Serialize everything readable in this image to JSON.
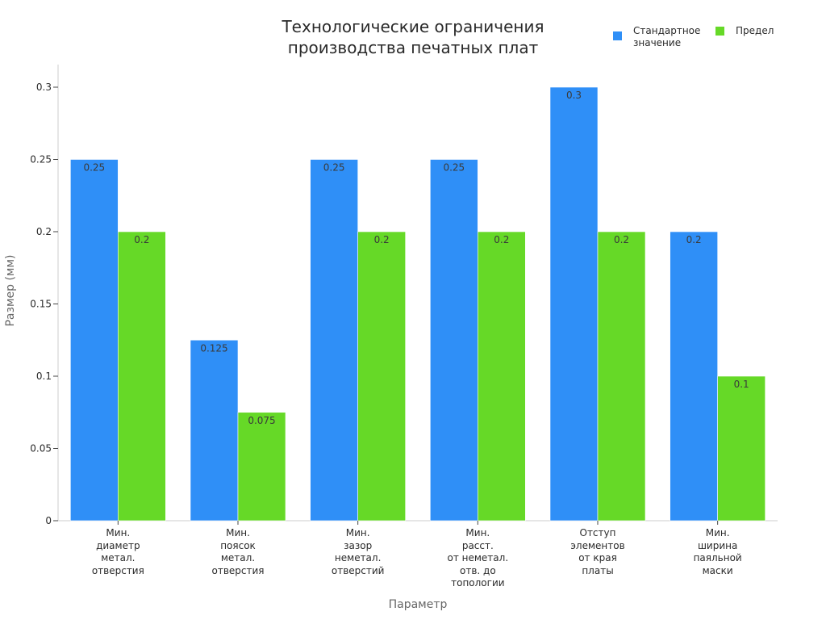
{
  "chart_data": {
    "type": "bar",
    "title": "Технологические ограничения\nпроизводства печатных плат",
    "xlabel": "Параметр",
    "ylabel": "Размер (мм)",
    "ylim": [
      0,
      0.315
    ],
    "yticks": [
      0,
      0.05,
      0.1,
      0.15,
      0.2,
      0.25,
      0.3
    ],
    "ytick_labels": [
      "0",
      "0.05",
      "0.1",
      "0.15",
      "0.2",
      "0.25",
      "0.3"
    ],
    "grid": false,
    "legend_position": "top-right",
    "categories": [
      "Мин.\nдиаметр\nметал.\nотверстия",
      "Мин.\nпоясок\nметал.\nотверстия",
      "Мин.\nзазор\nнеметал.\nотверстий",
      "Мин.\nрасст.\nот неметал.\nотв. до\nтопологии",
      "Отступ\nэлементов\nот края\nплаты",
      "Мин.\nширина\nпаяльной\nмаски"
    ],
    "series": [
      {
        "name": "Стандартное\nзначение",
        "color": "#2f8ff7",
        "values": [
          0.25,
          0.125,
          0.25,
          0.25,
          0.3,
          0.2
        ],
        "labels": [
          "0.25",
          "0.125",
          "0.25",
          "0.25",
          "0.3",
          "0.2"
        ]
      },
      {
        "name": "Предел",
        "color": "#66d927",
        "values": [
          0.2,
          0.075,
          0.2,
          0.2,
          0.2,
          0.1
        ],
        "labels": [
          "0.2",
          "0.075",
          "0.2",
          "0.2",
          "0.2",
          "0.1"
        ]
      }
    ]
  }
}
